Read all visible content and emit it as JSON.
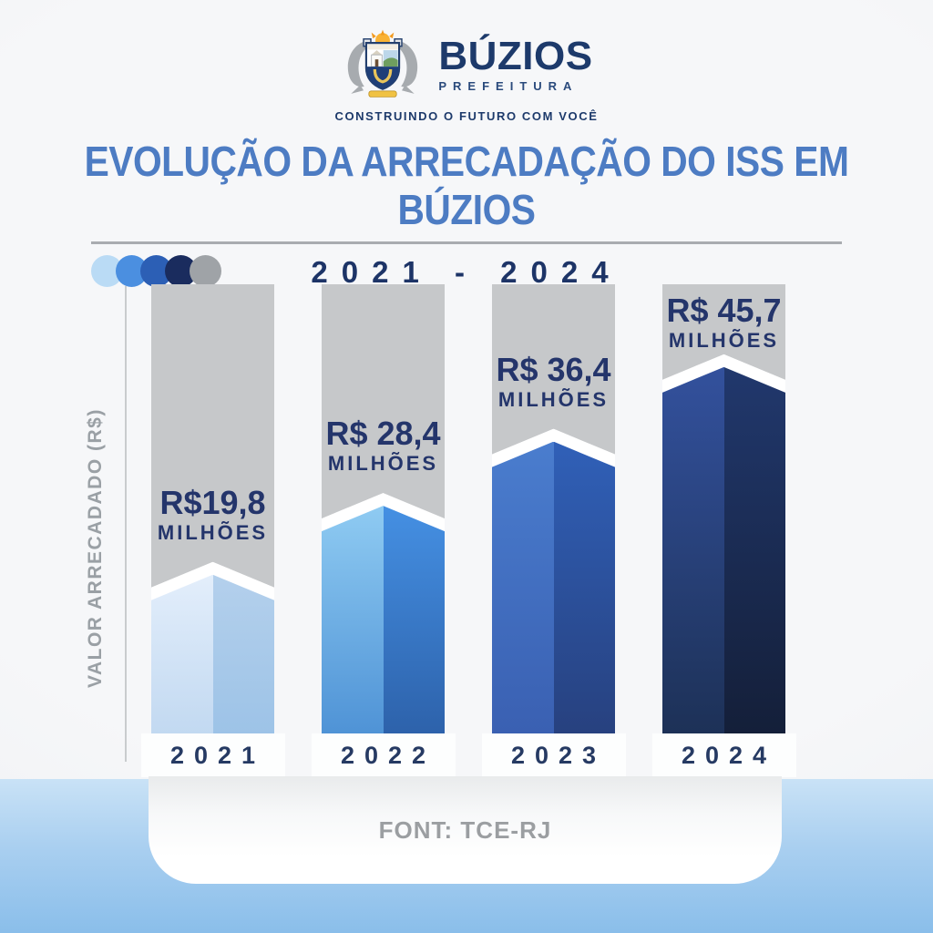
{
  "header": {
    "brand": "BÚZIOS",
    "brand_sub": "PREFEITURA",
    "tagline": "CONSTRUINDO O FUTURO COM VOCÊ"
  },
  "chart_data": {
    "type": "bar",
    "title": "EVOLUÇÃO DA ARRECADAÇÃO DO ISS EM BÚZIOS",
    "period": "2021 - 2024",
    "categories": [
      "2021",
      "2022",
      "2023",
      "2024"
    ],
    "values": [
      19.8,
      28.4,
      36.4,
      45.7
    ],
    "unit": "R$ milhões",
    "ylabel": "VALOR ARRECADADO (R$)",
    "xlabel": "",
    "source": "FONT: TCE-RJ",
    "grid": false,
    "legend": false,
    "ylim": [
      0,
      50
    ],
    "bars": [
      {
        "year": "2021",
        "value": 19.8,
        "label": "R$19,8",
        "unit_label": "MILHÕES",
        "face_left": [
          "#e3eefb",
          "#c2d9f1"
        ],
        "face_right": [
          "#b4d0ec",
          "#9dc3e7"
        ]
      },
      {
        "year": "2022",
        "value": 28.4,
        "label": "R$ 28,4",
        "unit_label": "MILHÕES",
        "face_left": [
          "#8fcbf2",
          "#4f93d6"
        ],
        "face_right": [
          "#4590e3",
          "#2d62ab"
        ]
      },
      {
        "year": "2023",
        "value": 36.4,
        "label": "R$ 36,4",
        "unit_label": "MILHÕES",
        "face_left": [
          "#4a7dce",
          "#3a60b2"
        ],
        "face_right": [
          "#3060b8",
          "#27417f"
        ]
      },
      {
        "year": "2024",
        "value": 45.7,
        "label": "R$ 45,7",
        "unit_label": "MILHÕES",
        "face_left": [
          "#33519d",
          "#1d3157"
        ],
        "face_right": [
          "#21386d",
          "#141f39"
        ]
      }
    ]
  },
  "theme": {
    "title_color": "#4d7cc3",
    "navy": "#1d3a6b",
    "track_color": "#c6c8ca",
    "dot_colors": [
      "#badbf5",
      "#4b8fe0",
      "#2c5fb5",
      "#1a2c5e",
      "#9fa3a7"
    ]
  },
  "footer": {
    "source": "FONT: TCE-RJ"
  }
}
